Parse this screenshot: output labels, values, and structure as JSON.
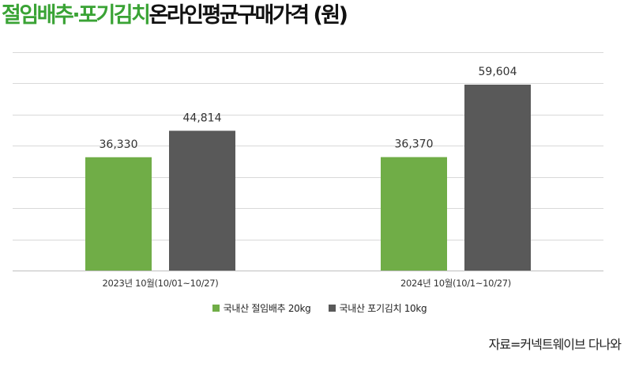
{
  "title": {
    "highlight": "절임배추·포기김치",
    "rest": "온라인평균구매가격 (원)"
  },
  "chart_data": {
    "type": "bar",
    "categories": [
      "2023년 10월(10/01~10/27)",
      "2024년 10월(10/1~10/27)"
    ],
    "series": [
      {
        "name": "국내산 절임배추 20kg",
        "values": [
          36330,
          36370
        ],
        "labels": [
          "36,330",
          "36,370"
        ],
        "color": "#70ad47"
      },
      {
        "name": "국내산 포기김치 10kg",
        "values": [
          44814,
          59604
        ],
        "labels": [
          "44,814",
          "59,604"
        ],
        "color": "#595959"
      }
    ],
    "ylim": [
      0,
      70000
    ],
    "grid": true,
    "legend": "bottom"
  },
  "source": "자료=커넥트웨이브 다나와"
}
